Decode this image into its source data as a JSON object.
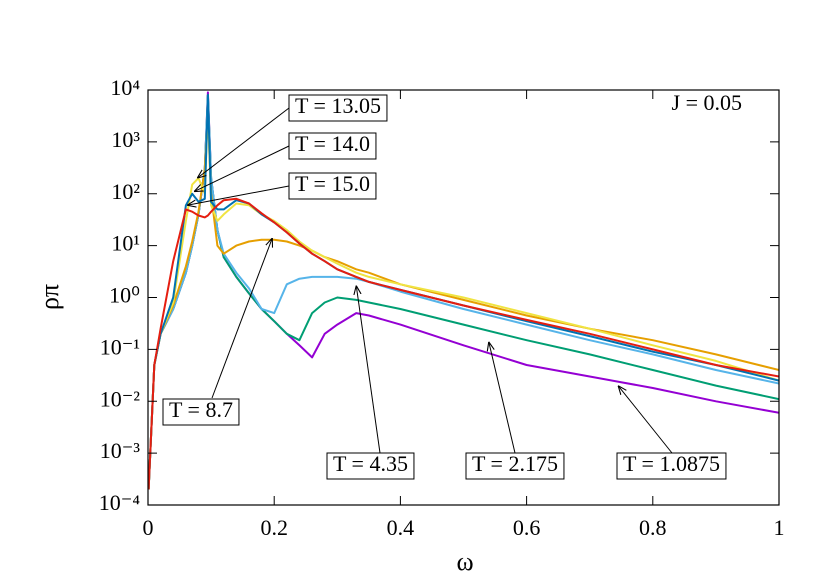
{
  "chart_data": {
    "type": "line",
    "x_label": "ω",
    "y_label": "ρπ",
    "annotation": "J = 0.05",
    "x": [
      0.001,
      0.01,
      0.02,
      0.04,
      0.06,
      0.07,
      0.08,
      0.09,
      0.095,
      0.1,
      0.11,
      0.12,
      0.14,
      0.16,
      0.18,
      0.2,
      0.22,
      0.24,
      0.26,
      0.28,
      0.3,
      0.33,
      0.35,
      0.4,
      0.5,
      0.6,
      0.7,
      0.8,
      0.9,
      1.0
    ],
    "series": [
      {
        "name": "T = 1.0875",
        "color": "#9400d3",
        "pointer": {
          "x": 0.745,
          "y": 0.02
        },
        "values": [
          0.0002,
          0.05,
          0.2,
          0.6,
          3,
          10,
          40,
          300,
          9000,
          200,
          20,
          6,
          2.5,
          1.2,
          0.6,
          0.35,
          0.2,
          0.12,
          0.07,
          0.2,
          0.3,
          0.5,
          0.45,
          0.3,
          0.12,
          0.05,
          0.03,
          0.018,
          0.01,
          0.006
        ]
      },
      {
        "name": "T = 2.175",
        "color": "#009e73",
        "pointer": {
          "x": 0.54,
          "y": 0.14
        },
        "values": [
          0.0002,
          0.05,
          0.2,
          0.6,
          3,
          10,
          40,
          300,
          8000,
          200,
          20,
          6,
          2.5,
          1.2,
          0.6,
          0.35,
          0.2,
          0.15,
          0.5,
          0.8,
          1.0,
          0.9,
          0.8,
          0.6,
          0.3,
          0.15,
          0.08,
          0.04,
          0.02,
          0.011
        ]
      },
      {
        "name": "T = 4.35",
        "color": "#56b4e9",
        "pointer": {
          "x": 0.33,
          "y": 1.7
        },
        "values": [
          0.0002,
          0.05,
          0.2,
          0.6,
          3,
          10,
          40,
          300,
          7000,
          200,
          20,
          7,
          3,
          1.5,
          0.6,
          0.5,
          1.8,
          2.3,
          2.5,
          2.5,
          2.5,
          2.3,
          2.0,
          1.3,
          0.6,
          0.3,
          0.15,
          0.08,
          0.04,
          0.022
        ]
      },
      {
        "name": "T = 8.7",
        "color": "#e69f00",
        "pointer": {
          "x": 0.197,
          "y": 14
        },
        "values": [
          0.0002,
          0.05,
          0.2,
          0.7,
          4,
          12,
          45,
          300,
          3000,
          100,
          10,
          7,
          10,
          12,
          13,
          13,
          12,
          10,
          8,
          6,
          5,
          3.5,
          3,
          1.8,
          0.9,
          0.45,
          0.25,
          0.15,
          0.08,
          0.04
        ]
      },
      {
        "name": "T = 13.05",
        "color": "#f0e442",
        "pointer": {
          "x": 0.078,
          "y": 200
        },
        "values": [
          0.0002,
          0.05,
          0.2,
          0.8,
          30,
          150,
          200,
          100,
          5000,
          60,
          30,
          40,
          65,
          60,
          40,
          30,
          20,
          12,
          8,
          6,
          4.5,
          3,
          2.5,
          1.8,
          1.0,
          0.5,
          0.25,
          0.12,
          0.06,
          0.025
        ]
      },
      {
        "name": "T = 14.0",
        "color": "#0072b2",
        "pointer": {
          "x": 0.073,
          "y": 110
        },
        "values": [
          0.0002,
          0.05,
          0.2,
          1,
          60,
          100,
          70,
          80,
          8000,
          70,
          50,
          50,
          75,
          65,
          40,
          28,
          18,
          11,
          7,
          5,
          3.5,
          2.5,
          2,
          1.4,
          0.7,
          0.35,
          0.18,
          0.09,
          0.05,
          0.025
        ]
      },
      {
        "name": "T = 15.0",
        "color": "#e51e10",
        "pointer": {
          "x": 0.062,
          "y": 60
        },
        "values": [
          0.0002,
          0.05,
          0.25,
          5,
          50,
          45,
          38,
          35,
          38,
          45,
          60,
          75,
          80,
          65,
          42,
          28,
          18,
          11,
          7,
          5,
          3.5,
          2.5,
          2,
          1.4,
          0.7,
          0.37,
          0.2,
          0.1,
          0.05,
          0.03
        ]
      }
    ],
    "xlim": [
      0,
      1
    ],
    "xticks": [
      0,
      0.2,
      0.4,
      0.6,
      0.8,
      1
    ],
    "ylim": [
      0.0001,
      10000
    ],
    "log_y": true,
    "yticks": [
      {
        "value": 0.0001,
        "label": "10⁻⁴"
      },
      {
        "value": 0.001,
        "label": "10⁻³"
      },
      {
        "value": 0.01,
        "label": "10⁻²"
      },
      {
        "value": 0.1,
        "label": "10⁻¹"
      },
      {
        "value": 1,
        "label": "10⁰"
      },
      {
        "value": 10,
        "label": "10¹"
      },
      {
        "value": 100,
        "label": "10²"
      },
      {
        "value": 1000,
        "label": "10³"
      },
      {
        "value": 10000,
        "label": "10⁴"
      }
    ],
    "grid": false
  }
}
